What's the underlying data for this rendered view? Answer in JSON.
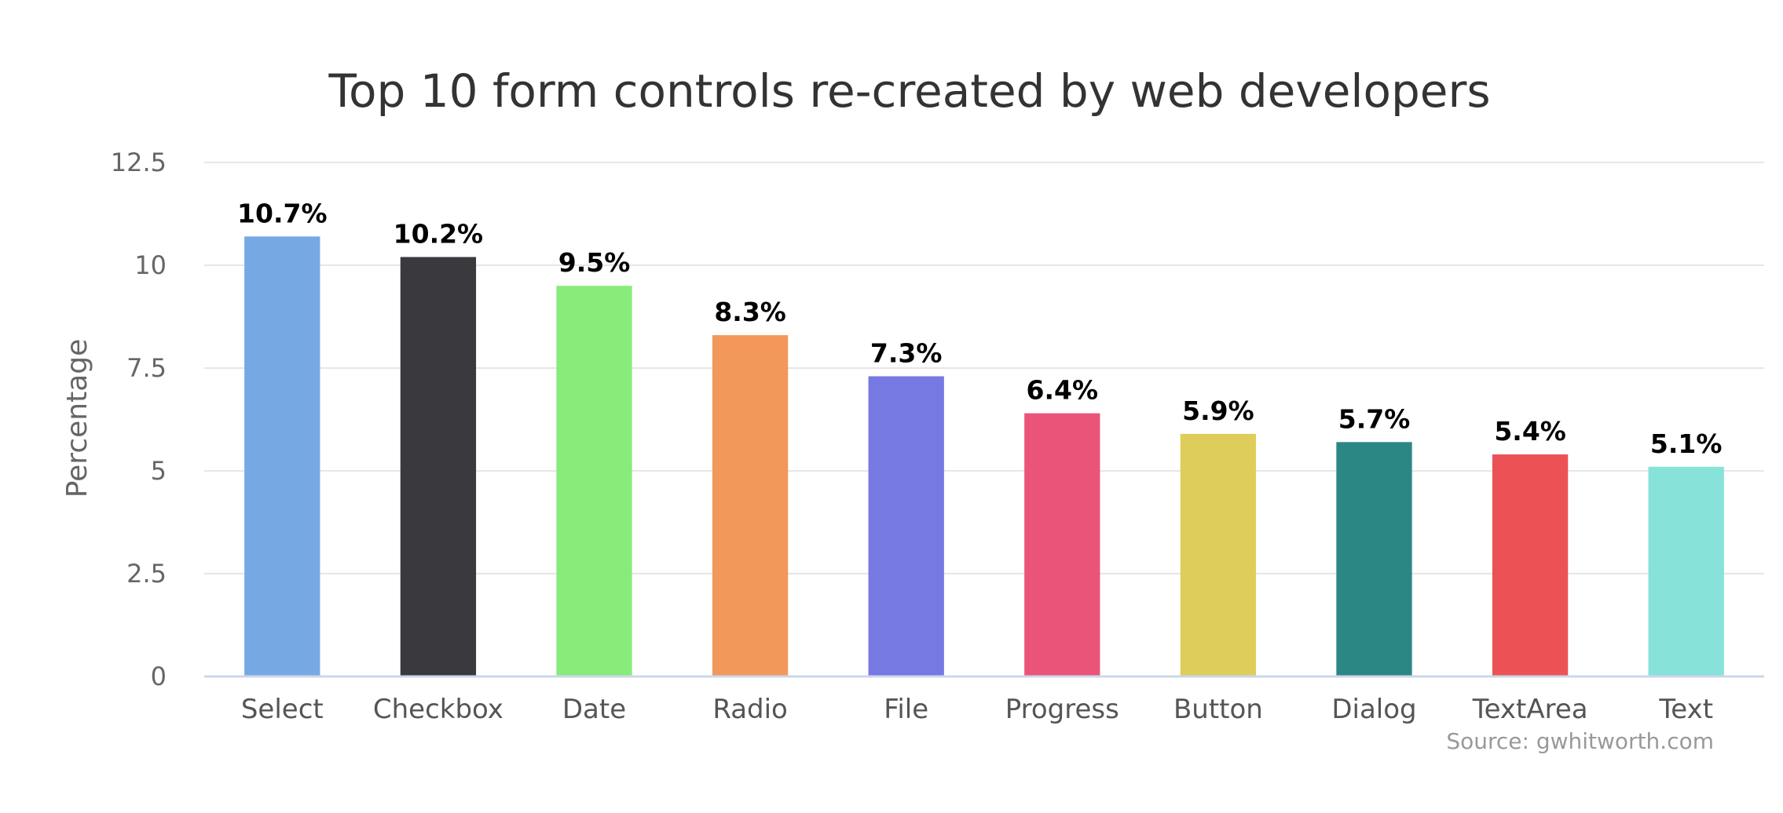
{
  "chart_data": {
    "type": "bar",
    "title": "Top 10 form controls re-created by web developers",
    "ylabel": "Percentage",
    "xlabel": "",
    "ylim": [
      0,
      12.5
    ],
    "yticks": [
      "0",
      "2.5",
      "5",
      "7.5",
      "10",
      "12.5"
    ],
    "categories": [
      "Select",
      "Checkbox",
      "Date",
      "Radio",
      "File",
      "Progress",
      "Button",
      "Dialog",
      "TextArea",
      "Text"
    ],
    "values": [
      10.7,
      10.2,
      9.5,
      8.3,
      7.3,
      6.4,
      5.9,
      5.7,
      5.4,
      5.1
    ],
    "labels": [
      "10.7%",
      "10.2%",
      "9.5%",
      "8.3%",
      "7.3%",
      "6.4%",
      "5.9%",
      "5.7%",
      "5.4%",
      "5.1%"
    ],
    "colors": [
      "#76a9e4",
      "#3a393e",
      "#87ec79",
      "#f2985b",
      "#7679e1",
      "#ea5478",
      "#dfcd5b",
      "#2b8784",
      "#ec5255",
      "#87e3d9"
    ],
    "grid": true,
    "legend": "none",
    "credit": "Source: gwhitworth.com"
  }
}
